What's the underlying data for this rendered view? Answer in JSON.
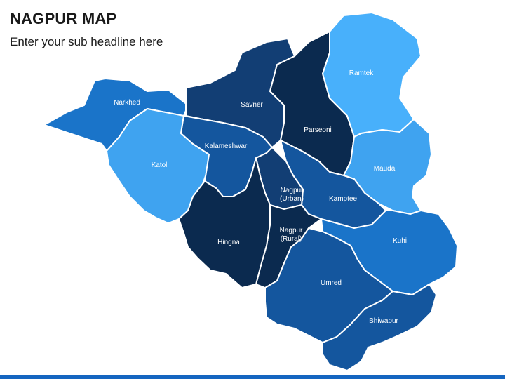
{
  "title": "NAGPUR MAP",
  "subtitle": "Enter your sub headline here",
  "colors": {
    "navy": "#0b2a4f",
    "dark_blue": "#123e74",
    "medium_blue": "#14569e",
    "blue": "#1a74c9",
    "light_blue": "#3fa3f0",
    "sky_blue": "#48b0fb",
    "bar": "#1565c0"
  },
  "regions": [
    {
      "id": "narkhed",
      "name": "Narkhed",
      "color": "#1a74c9"
    },
    {
      "id": "katol",
      "name": "Katol",
      "color": "#3fa3f0"
    },
    {
      "id": "savner",
      "name": "Savner",
      "color": "#123e74"
    },
    {
      "id": "kalameshwar",
      "name": "Kalameshwar",
      "color": "#14569e"
    },
    {
      "id": "parseoni",
      "name": "Parseoni",
      "color": "#0b2a4f"
    },
    {
      "id": "ramtek",
      "name": "Ramtek",
      "color": "#48b0fb"
    },
    {
      "id": "mauda",
      "name": "Mauda",
      "color": "#3fa3f0"
    },
    {
      "id": "kamptee",
      "name": "Kamptee",
      "color": "#14569e"
    },
    {
      "id": "nagpur_urban",
      "name": "Nagpur",
      "sub": "(Urban)",
      "color": "#123e74"
    },
    {
      "id": "nagpur_rural",
      "name": "Nagpur",
      "sub": "(Rural)",
      "color": "#0b2a4f"
    },
    {
      "id": "hingna",
      "name": "Hingna",
      "color": "#0b2a4f"
    },
    {
      "id": "kuhi",
      "name": "Kuhi",
      "color": "#1a74c9"
    },
    {
      "id": "umred",
      "name": "Umred",
      "color": "#14569e"
    },
    {
      "id": "bhiwapur",
      "name": "Bhiwapur",
      "color": "#14569e"
    }
  ]
}
